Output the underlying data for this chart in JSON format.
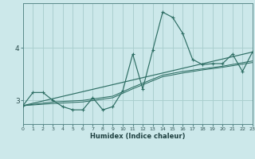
{
  "title": "",
  "xlabel": "Humidex (Indice chaleur)",
  "bg_color": "#cce8ea",
  "grid_color": "#aacfcf",
  "line_color": "#2e6e64",
  "xlim": [
    0,
    23
  ],
  "ylim": [
    2.55,
    4.85
  ],
  "yticks": [
    3,
    4
  ],
  "xticks": [
    0,
    1,
    2,
    3,
    4,
    5,
    6,
    7,
    8,
    9,
    10,
    11,
    12,
    13,
    14,
    15,
    16,
    17,
    18,
    19,
    20,
    21,
    22,
    23
  ],
  "main_line": {
    "x": [
      0,
      1,
      2,
      3,
      4,
      5,
      6,
      7,
      8,
      9,
      10,
      11,
      12,
      13,
      14,
      15,
      16,
      17,
      18,
      19,
      20,
      21,
      22,
      23
    ],
    "y": [
      2.9,
      3.15,
      3.15,
      3.0,
      2.88,
      2.82,
      2.82,
      3.05,
      2.82,
      2.88,
      3.18,
      3.88,
      3.22,
      3.95,
      4.68,
      4.58,
      4.28,
      3.78,
      3.68,
      3.7,
      3.7,
      3.88,
      3.55,
      3.92
    ]
  },
  "diag_line": {
    "x": [
      0,
      23
    ],
    "y": [
      2.9,
      3.92
    ]
  },
  "curve2": {
    "x": [
      0,
      3,
      6,
      9,
      11,
      14,
      16,
      18,
      20,
      23
    ],
    "y": [
      2.9,
      2.97,
      3.0,
      3.08,
      3.25,
      3.48,
      3.55,
      3.6,
      3.65,
      3.75
    ]
  },
  "curve3": {
    "x": [
      0,
      3,
      6,
      9,
      11,
      14,
      16,
      18,
      20,
      23
    ],
    "y": [
      2.9,
      2.94,
      2.97,
      3.05,
      3.22,
      3.45,
      3.52,
      3.58,
      3.63,
      3.72
    ]
  }
}
